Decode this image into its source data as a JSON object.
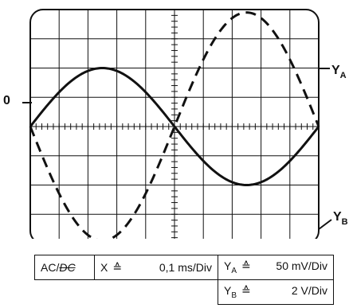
{
  "screen": {
    "zero_label": "0",
    "divisions_x": 10,
    "divisions_y": 8,
    "channels": [
      {
        "name": "Y",
        "subscript": "A",
        "line": "solid",
        "cycles": 1,
        "amplitude_div": 2.0,
        "phase": "sine"
      },
      {
        "name": "Y",
        "subscript": "B",
        "line": "dashed",
        "cycles": 1,
        "amplitude_div": 3.9,
        "phase": "negative-sine"
      }
    ]
  },
  "settings": {
    "acdc_prefix": "AC/",
    "acdc_struck": "DC",
    "x_label": "X",
    "x_symbol": "≙",
    "x_value": "0,1 ms/Div",
    "ya_label": "Y",
    "ya_sub": "A",
    "ya_symbol": "≙",
    "ya_value": "50 mV/Div",
    "yb_label": "Y",
    "yb_sub": "B",
    "yb_symbol": "≙",
    "yb_value": "2 V/Div"
  },
  "colors": {
    "ink": "#111111",
    "background": "#ffffff"
  }
}
